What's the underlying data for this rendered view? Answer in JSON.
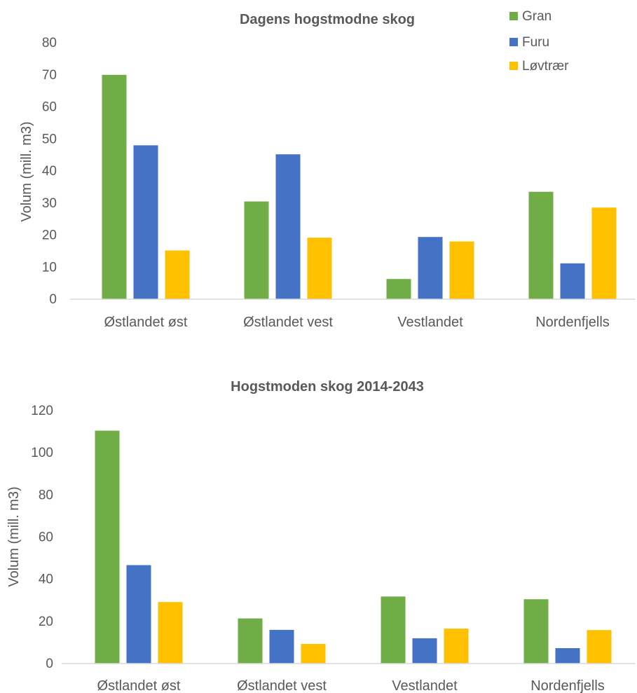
{
  "legend": [
    {
      "label": "Gran",
      "color": "#70AD47"
    },
    {
      "label": "Furu",
      "color": "#4472C4"
    },
    {
      "label": "Løvtrær",
      "color": "#FFC000"
    }
  ],
  "chart_data": [
    {
      "type": "bar",
      "title": "Dagens hogstmodne skog",
      "ylabel": "Volum (mill. m3)",
      "xlabel": "",
      "ylim": [
        0,
        80
      ],
      "yticks": [
        0,
        10,
        20,
        30,
        40,
        50,
        60,
        70,
        80
      ],
      "grid": false,
      "legend_position": "top-right",
      "categories": [
        "Østlandet øst",
        "Østlandet vest",
        "Vestlandet",
        "Nordenfjells"
      ],
      "series": [
        {
          "name": "Gran",
          "color": "#70AD47",
          "values": [
            70,
            30.5,
            6.3,
            33.5
          ]
        },
        {
          "name": "Furu",
          "color": "#4472C4",
          "values": [
            48,
            45.2,
            19.4,
            11.2
          ]
        },
        {
          "name": "Løvtrær",
          "color": "#FFC000",
          "values": [
            15.2,
            19.2,
            18,
            28.6
          ]
        }
      ]
    },
    {
      "type": "bar",
      "title": "Hogstmoden skog 2014-2043",
      "ylabel": "Volum (mill. m3)",
      "xlabel": "",
      "ylim": [
        0,
        120
      ],
      "yticks": [
        0,
        20,
        40,
        60,
        80,
        100,
        120
      ],
      "grid": false,
      "categories": [
        "Østlandet øst",
        "Østlandet vest",
        "Vestlandet",
        "Nordenfjells"
      ],
      "series": [
        {
          "name": "Gran",
          "color": "#70AD47",
          "values": [
            110.5,
            21.4,
            31.8,
            30.5
          ]
        },
        {
          "name": "Furu",
          "color": "#4472C4",
          "values": [
            46.7,
            16,
            12,
            7.3
          ]
        },
        {
          "name": "Løvtrær",
          "color": "#FFC000",
          "values": [
            29.2,
            9.3,
            16.6,
            15.9
          ]
        }
      ]
    }
  ]
}
